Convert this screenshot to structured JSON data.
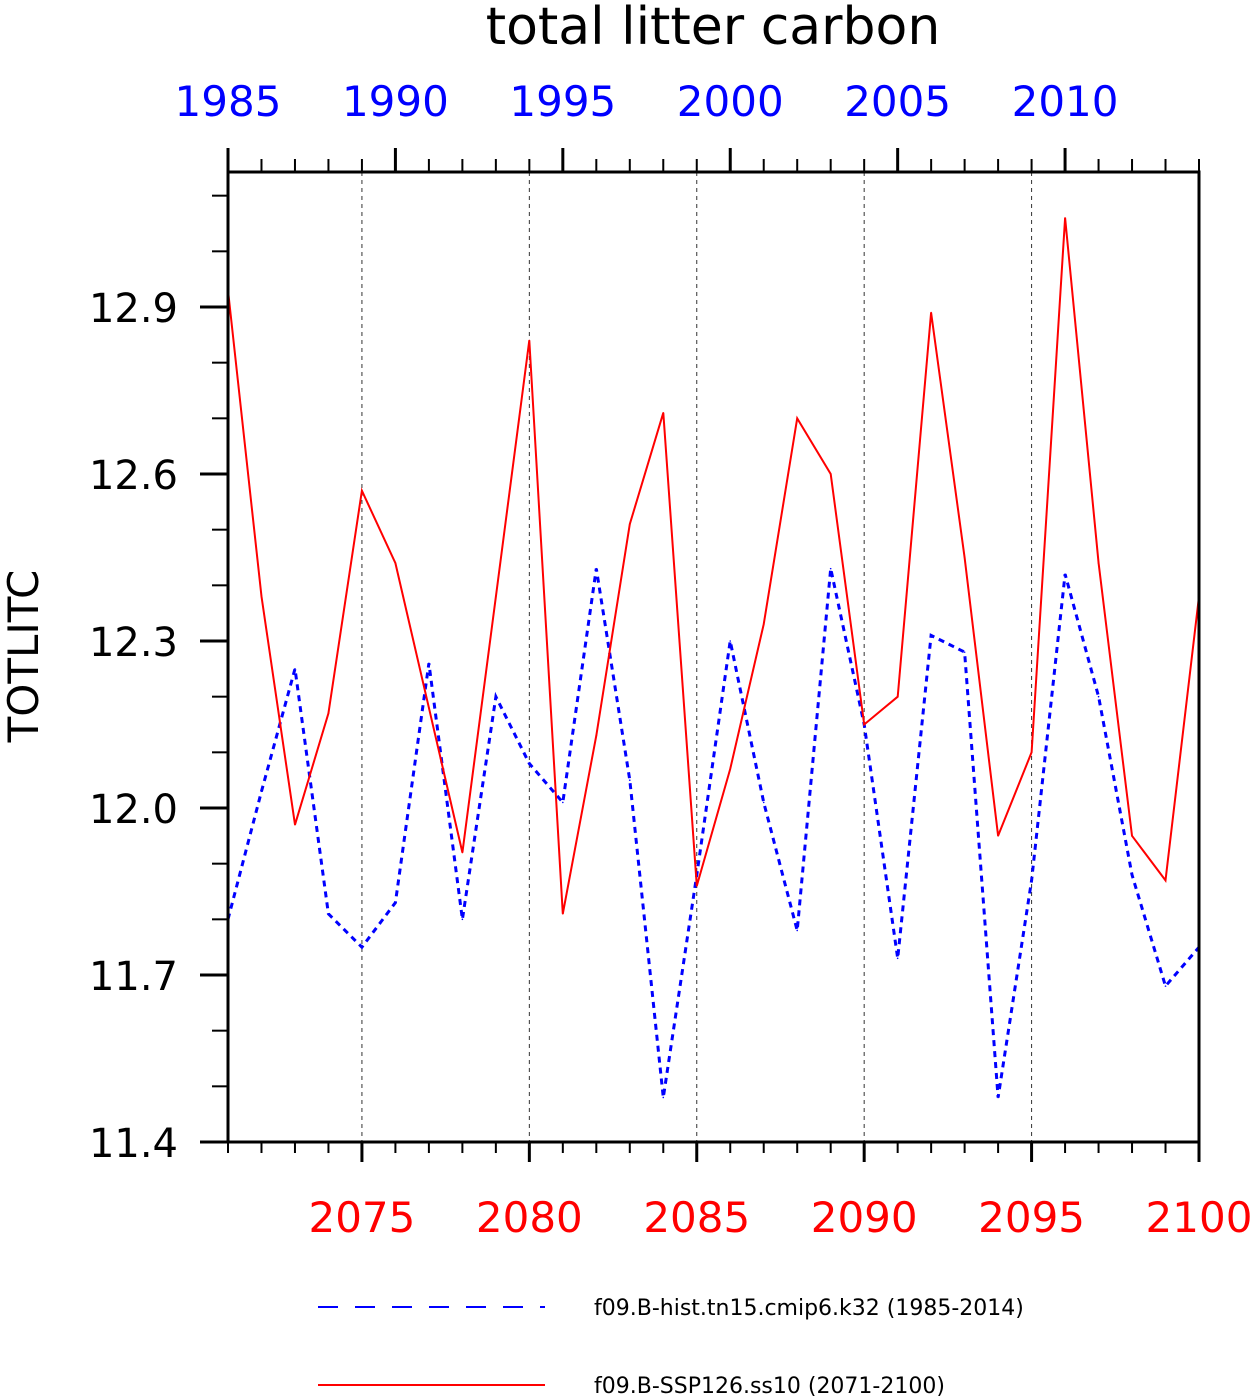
{
  "chart_data": {
    "type": "line",
    "title": "total litter carbon",
    "ylabel": "TOTLITC",
    "ylim": [
      11.4,
      13.15
    ],
    "yticks": [
      "11.4",
      "11.7",
      "12.0",
      "12.3",
      "12.6",
      "12.9"
    ],
    "grid": "vertical dashed lines at labeled x ticks",
    "legend_position": "bottom",
    "top_axis": {
      "color": "#0000ff",
      "range": [
        1985,
        2014
      ],
      "tick_labels": [
        "1985",
        "1990",
        "1995",
        "2000",
        "2005",
        "2010"
      ]
    },
    "bottom_axis": {
      "color": "#ff0000",
      "range": [
        2071,
        2100
      ],
      "tick_labels": [
        "2075",
        "2080",
        "2085",
        "2090",
        "2095",
        "2100"
      ]
    },
    "series": [
      {
        "name": "f09.B-hist.tn15.cmip6.k32 (1985-2014)",
        "color": "#0000ff",
        "dash": "dashed",
        "x": [
          1985,
          1986,
          1987,
          1988,
          1989,
          1990,
          1991,
          1992,
          1993,
          1994,
          1995,
          1996,
          1997,
          1998,
          1999,
          2000,
          2001,
          2002,
          2003,
          2004,
          2005,
          2006,
          2007,
          2008,
          2009,
          2010,
          2011,
          2012,
          2013,
          2014
        ],
        "values": [
          11.8,
          12.03,
          12.25,
          11.81,
          11.75,
          11.83,
          12.26,
          11.8,
          12.2,
          12.08,
          12.01,
          12.43,
          12.05,
          11.48,
          11.88,
          12.3,
          12.01,
          11.78,
          12.43,
          12.15,
          11.73,
          12.31,
          12.28,
          11.48,
          11.87,
          12.42,
          12.2,
          11.88,
          11.68,
          11.75
        ]
      },
      {
        "name": "f09.B-SSP126.ss10 (2071-2100)",
        "color": "#ff0000",
        "dash": "solid",
        "x": [
          2071,
          2072,
          2073,
          2074,
          2075,
          2076,
          2077,
          2078,
          2079,
          2080,
          2081,
          2082,
          2083,
          2084,
          2085,
          2086,
          2087,
          2088,
          2089,
          2090,
          2091,
          2092,
          2093,
          2094,
          2095,
          2096,
          2097,
          2098,
          2099,
          2100
        ],
        "values": [
          12.93,
          12.38,
          11.97,
          12.17,
          12.57,
          12.44,
          12.18,
          11.92,
          12.38,
          12.84,
          11.81,
          12.13,
          12.51,
          12.71,
          11.86,
          12.07,
          12.33,
          12.7,
          12.6,
          12.15,
          12.2,
          12.89,
          12.45,
          11.95,
          12.1,
          13.06,
          12.44,
          11.95,
          11.87,
          12.38
        ]
      }
    ]
  },
  "legend": {
    "hist_label": "f09.B-hist.tn15.cmip6.k32 (1985-2014)",
    "ssp_label": "f09.B-SSP126.ss10 (2071-2100)"
  }
}
